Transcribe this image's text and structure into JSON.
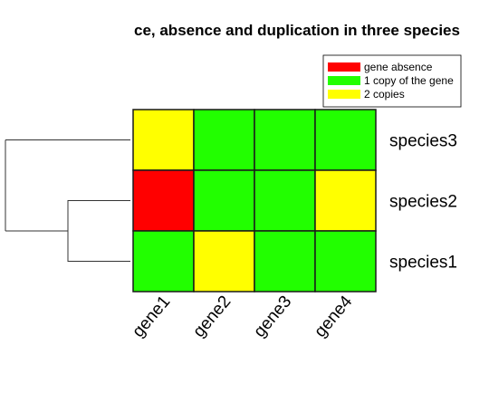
{
  "chart_data": {
    "type": "heatmap",
    "title": "ce, absence and duplication in three species",
    "columns": [
      "gene1",
      "gene2",
      "gene3",
      "gene4"
    ],
    "rows": [
      "species3",
      "species2",
      "species1"
    ],
    "values": [
      [
        2,
        1,
        1,
        1
      ],
      [
        0,
        1,
        1,
        2
      ],
      [
        1,
        2,
        1,
        1
      ]
    ],
    "legend": [
      {
        "label": "gene absence",
        "value": 0,
        "color": "#ff0000"
      },
      {
        "label": "1 copy of the gene",
        "value": 1,
        "color": "#22ff00"
      },
      {
        "label": "2 copies",
        "value": 2,
        "color": "#ffff00"
      }
    ],
    "legend_position": "top-right",
    "row_dendrogram": "species1 and species2 join first, then species3"
  }
}
